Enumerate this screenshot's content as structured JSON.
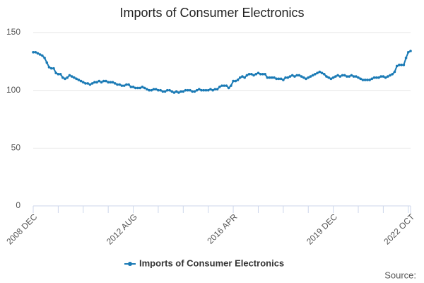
{
  "chart_data": {
    "type": "line",
    "title": "Imports of Consumer Electronics",
    "source": "Source:",
    "categories": [
      "2008 DEC",
      null,
      null,
      null,
      null,
      null,
      null,
      null,
      null,
      null,
      null,
      null,
      null,
      null,
      null,
      null,
      null,
      null,
      null,
      null,
      null,
      null,
      null,
      null,
      null,
      null,
      null,
      null,
      null,
      null,
      null,
      null,
      null,
      null,
      null,
      null,
      null,
      null,
      null,
      null,
      null,
      null,
      null,
      null,
      "2012 AUG",
      null,
      null,
      null,
      null,
      null,
      null,
      null,
      null,
      null,
      null,
      null,
      null,
      null,
      null,
      null,
      null,
      null,
      null,
      null,
      null,
      null,
      null,
      null,
      null,
      null,
      null,
      null,
      null,
      null,
      null,
      null,
      null,
      null,
      null,
      null,
      null,
      null,
      null,
      null,
      null,
      null,
      null,
      null,
      "2016 APR",
      null,
      null,
      null,
      null,
      null,
      null,
      null,
      null,
      null,
      null,
      null,
      null,
      null,
      null,
      null,
      null,
      null,
      null,
      null,
      null,
      null,
      null,
      null,
      null,
      null,
      null,
      null,
      null,
      null,
      null,
      null,
      null,
      null,
      null,
      null,
      null,
      null,
      null,
      null,
      null,
      null,
      null,
      null,
      "2019 DEC",
      null,
      null,
      null,
      null,
      null,
      null,
      null,
      null,
      null,
      null,
      null,
      null,
      null,
      null,
      null,
      null,
      null,
      null,
      null,
      null,
      null,
      null,
      null,
      null,
      null,
      null,
      null,
      null,
      null,
      null,
      null,
      null,
      null,
      "2022 OCT"
    ],
    "series": [
      {
        "name": "Imports of Consumer Electronics",
        "color": "#1a7ab5",
        "values": [
          133,
          133,
          132,
          131,
          130,
          128,
          124,
          120,
          119,
          119,
          115,
          114,
          114,
          111,
          110,
          111,
          113,
          112,
          111,
          110,
          109,
          108,
          107,
          106,
          106,
          105,
          106,
          107,
          107,
          108,
          107,
          108,
          108,
          107,
          107,
          107,
          106,
          105,
          105,
          104,
          104,
          105,
          105,
          103,
          103,
          102,
          102,
          102,
          103,
          102,
          101,
          100,
          100,
          101,
          101,
          100,
          100,
          99,
          99,
          100,
          100,
          99,
          98,
          99,
          98,
          99,
          99,
          100,
          100,
          100,
          99,
          99,
          100,
          101,
          100,
          100,
          100,
          100,
          101,
          100,
          101,
          101,
          103,
          104,
          104,
          104,
          102,
          104,
          108,
          108,
          109,
          111,
          112,
          111,
          113,
          114,
          114,
          113,
          114,
          115,
          114,
          114,
          114,
          111,
          111,
          111,
          111,
          110,
          110,
          110,
          109,
          111,
          111,
          112,
          113,
          112,
          113,
          113,
          112,
          111,
          110,
          111,
          112,
          113,
          114,
          115,
          116,
          115,
          114,
          112,
          111,
          110,
          111,
          112,
          113,
          112,
          113,
          113,
          112,
          112,
          113,
          112,
          112,
          111,
          110,
          109,
          109,
          109,
          109,
          110,
          111,
          111,
          111,
          112,
          112,
          111,
          112,
          113,
          114,
          116,
          121,
          122,
          122,
          122,
          128,
          133,
          134
        ]
      }
    ],
    "ylim": [
      0,
      150
    ],
    "yticks": [
      0,
      50,
      100,
      150
    ],
    "grid": true
  }
}
